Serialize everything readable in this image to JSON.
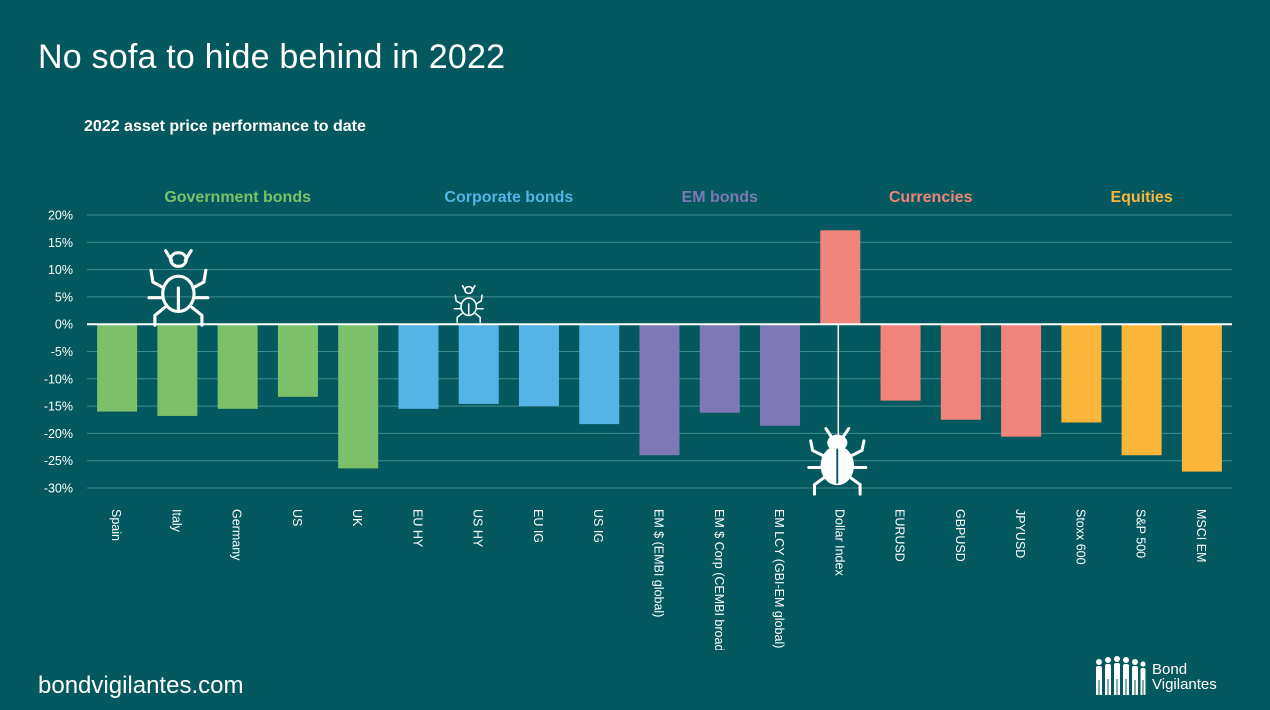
{
  "slide": {
    "title": "No sofa to hide behind in 2022",
    "footer_url": "bondvigilantes.com",
    "brand": {
      "line1": "Bond",
      "line2": "Vigilantes"
    }
  },
  "chart_data": {
    "type": "bar",
    "title": "2022 asset price performance to date",
    "ylim": [
      -30,
      20
    ],
    "yticks": [
      20,
      15,
      10,
      5,
      0,
      -5,
      -10,
      -15,
      -20,
      -25,
      -30
    ],
    "ytick_labels": [
      "20%",
      "15%",
      "10%",
      "5%",
      "0%",
      "-5%",
      "-10%",
      "-15%",
      "-20%",
      "-25%",
      "-30%"
    ],
    "grid": true,
    "categories": [
      "Spain",
      "Italy",
      "Germany",
      "US",
      "UK",
      "EU HY",
      "US HY",
      "EU IG",
      "US IG",
      "EM $ (EMBI global)",
      "EM $ Corp (CEMBI broad)",
      "EM LCY (GBI-EM global)",
      "Dollar Index",
      "EURUSD",
      "GBPUSD",
      "JPYUSD",
      "Stoxx 600",
      "S&P 500",
      "MSCI EM"
    ],
    "values": [
      -16,
      -16.8,
      -15.5,
      -13.3,
      -26.4,
      -15.5,
      -14.6,
      -15,
      -18.3,
      -24,
      -16.2,
      -18.6,
      17.2,
      -14,
      -17.5,
      -20.6,
      -18,
      -24,
      -27
    ],
    "groups": [
      {
        "name": "Government bonds",
        "color": "#7dc06a",
        "start": 0,
        "end": 4
      },
      {
        "name": "Corporate bonds",
        "color": "#55b4e6",
        "start": 5,
        "end": 8
      },
      {
        "name": "EM bonds",
        "color": "#7e79b6",
        "start": 9,
        "end": 11
      },
      {
        "name": "Currencies",
        "color": "#f0847a",
        "start": 12,
        "end": 15
      },
      {
        "name": "Equities",
        "color": "#fbb538",
        "start": 16,
        "end": 18
      }
    ],
    "icons": [
      "bug-outline-icon",
      "bug-outline-icon",
      "bug-solid-icon"
    ]
  }
}
